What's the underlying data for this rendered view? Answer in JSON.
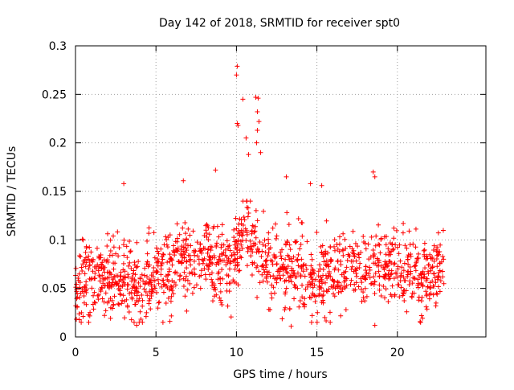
{
  "chart_data": {
    "type": "scatter",
    "title": "Day 142 of 2018, SRMTID for receiver spt0",
    "xlabel": "GPS time / hours",
    "ylabel": "SRMTID / TECUs",
    "xlim": [
      0,
      25.5
    ],
    "ylim": [
      0,
      0.3
    ],
    "xticks": [
      0,
      5,
      10,
      15,
      20
    ],
    "yticks": [
      0,
      0.05,
      0.1,
      0.15,
      0.2,
      0.25,
      0.3
    ],
    "xtick_labels": [
      "0",
      "5",
      "10",
      "15",
      "20"
    ],
    "ytick_labels": [
      "0",
      "0.05",
      "0.1",
      "0.15",
      "0.2",
      "0.25",
      "0.3"
    ],
    "grid": true,
    "marker": "+",
    "color": "#ff0000",
    "series": [
      {
        "name": "SRMTID",
        "profile_points": [
          {
            "x": 0.0,
            "y": 0.055
          },
          {
            "x": 1.0,
            "y": 0.058
          },
          {
            "x": 2.0,
            "y": 0.06
          },
          {
            "x": 3.0,
            "y": 0.058
          },
          {
            "x": 4.0,
            "y": 0.052
          },
          {
            "x": 5.0,
            "y": 0.062
          },
          {
            "x": 6.0,
            "y": 0.066
          },
          {
            "x": 7.0,
            "y": 0.075
          },
          {
            "x": 8.0,
            "y": 0.088
          },
          {
            "x": 9.0,
            "y": 0.072
          },
          {
            "x": 10.0,
            "y": 0.085
          },
          {
            "x": 10.5,
            "y": 0.12
          },
          {
            "x": 11.0,
            "y": 0.1
          },
          {
            "x": 11.5,
            "y": 0.085
          },
          {
            "x": 12.0,
            "y": 0.07
          },
          {
            "x": 13.0,
            "y": 0.065
          },
          {
            "x": 14.0,
            "y": 0.068
          },
          {
            "x": 15.0,
            "y": 0.06
          },
          {
            "x": 16.0,
            "y": 0.065
          },
          {
            "x": 17.0,
            "y": 0.072
          },
          {
            "x": 18.0,
            "y": 0.07
          },
          {
            "x": 19.0,
            "y": 0.072
          },
          {
            "x": 20.0,
            "y": 0.068
          },
          {
            "x": 21.0,
            "y": 0.06
          },
          {
            "x": 22.0,
            "y": 0.065
          },
          {
            "x": 22.8,
            "y": 0.07
          }
        ],
        "notable_points": [
          {
            "x": 10.05,
            "y": 0.279
          },
          {
            "x": 10.0,
            "y": 0.27
          },
          {
            "x": 10.4,
            "y": 0.245
          },
          {
            "x": 11.2,
            "y": 0.247
          },
          {
            "x": 11.35,
            "y": 0.246
          },
          {
            "x": 11.3,
            "y": 0.232
          },
          {
            "x": 11.4,
            "y": 0.222
          },
          {
            "x": 10.05,
            "y": 0.22
          },
          {
            "x": 10.1,
            "y": 0.218
          },
          {
            "x": 11.3,
            "y": 0.213
          },
          {
            "x": 11.25,
            "y": 0.2
          },
          {
            "x": 10.6,
            "y": 0.205
          },
          {
            "x": 10.75,
            "y": 0.188
          },
          {
            "x": 11.5,
            "y": 0.19
          },
          {
            "x": 8.7,
            "y": 0.172
          },
          {
            "x": 18.5,
            "y": 0.17
          },
          {
            "x": 13.1,
            "y": 0.165
          },
          {
            "x": 6.7,
            "y": 0.161
          },
          {
            "x": 3.0,
            "y": 0.158
          },
          {
            "x": 14.6,
            "y": 0.158
          },
          {
            "x": 15.3,
            "y": 0.156
          },
          {
            "x": 18.6,
            "y": 0.165
          },
          {
            "x": 3.8,
            "y": 0.012
          },
          {
            "x": 13.4,
            "y": 0.011
          },
          {
            "x": 18.6,
            "y": 0.012
          },
          {
            "x": 21.5,
            "y": 0.022
          }
        ],
        "point_count": 1400,
        "x_range": [
          0,
          22.9
        ],
        "typical_range": [
          0.015,
          0.14
        ]
      }
    ]
  }
}
